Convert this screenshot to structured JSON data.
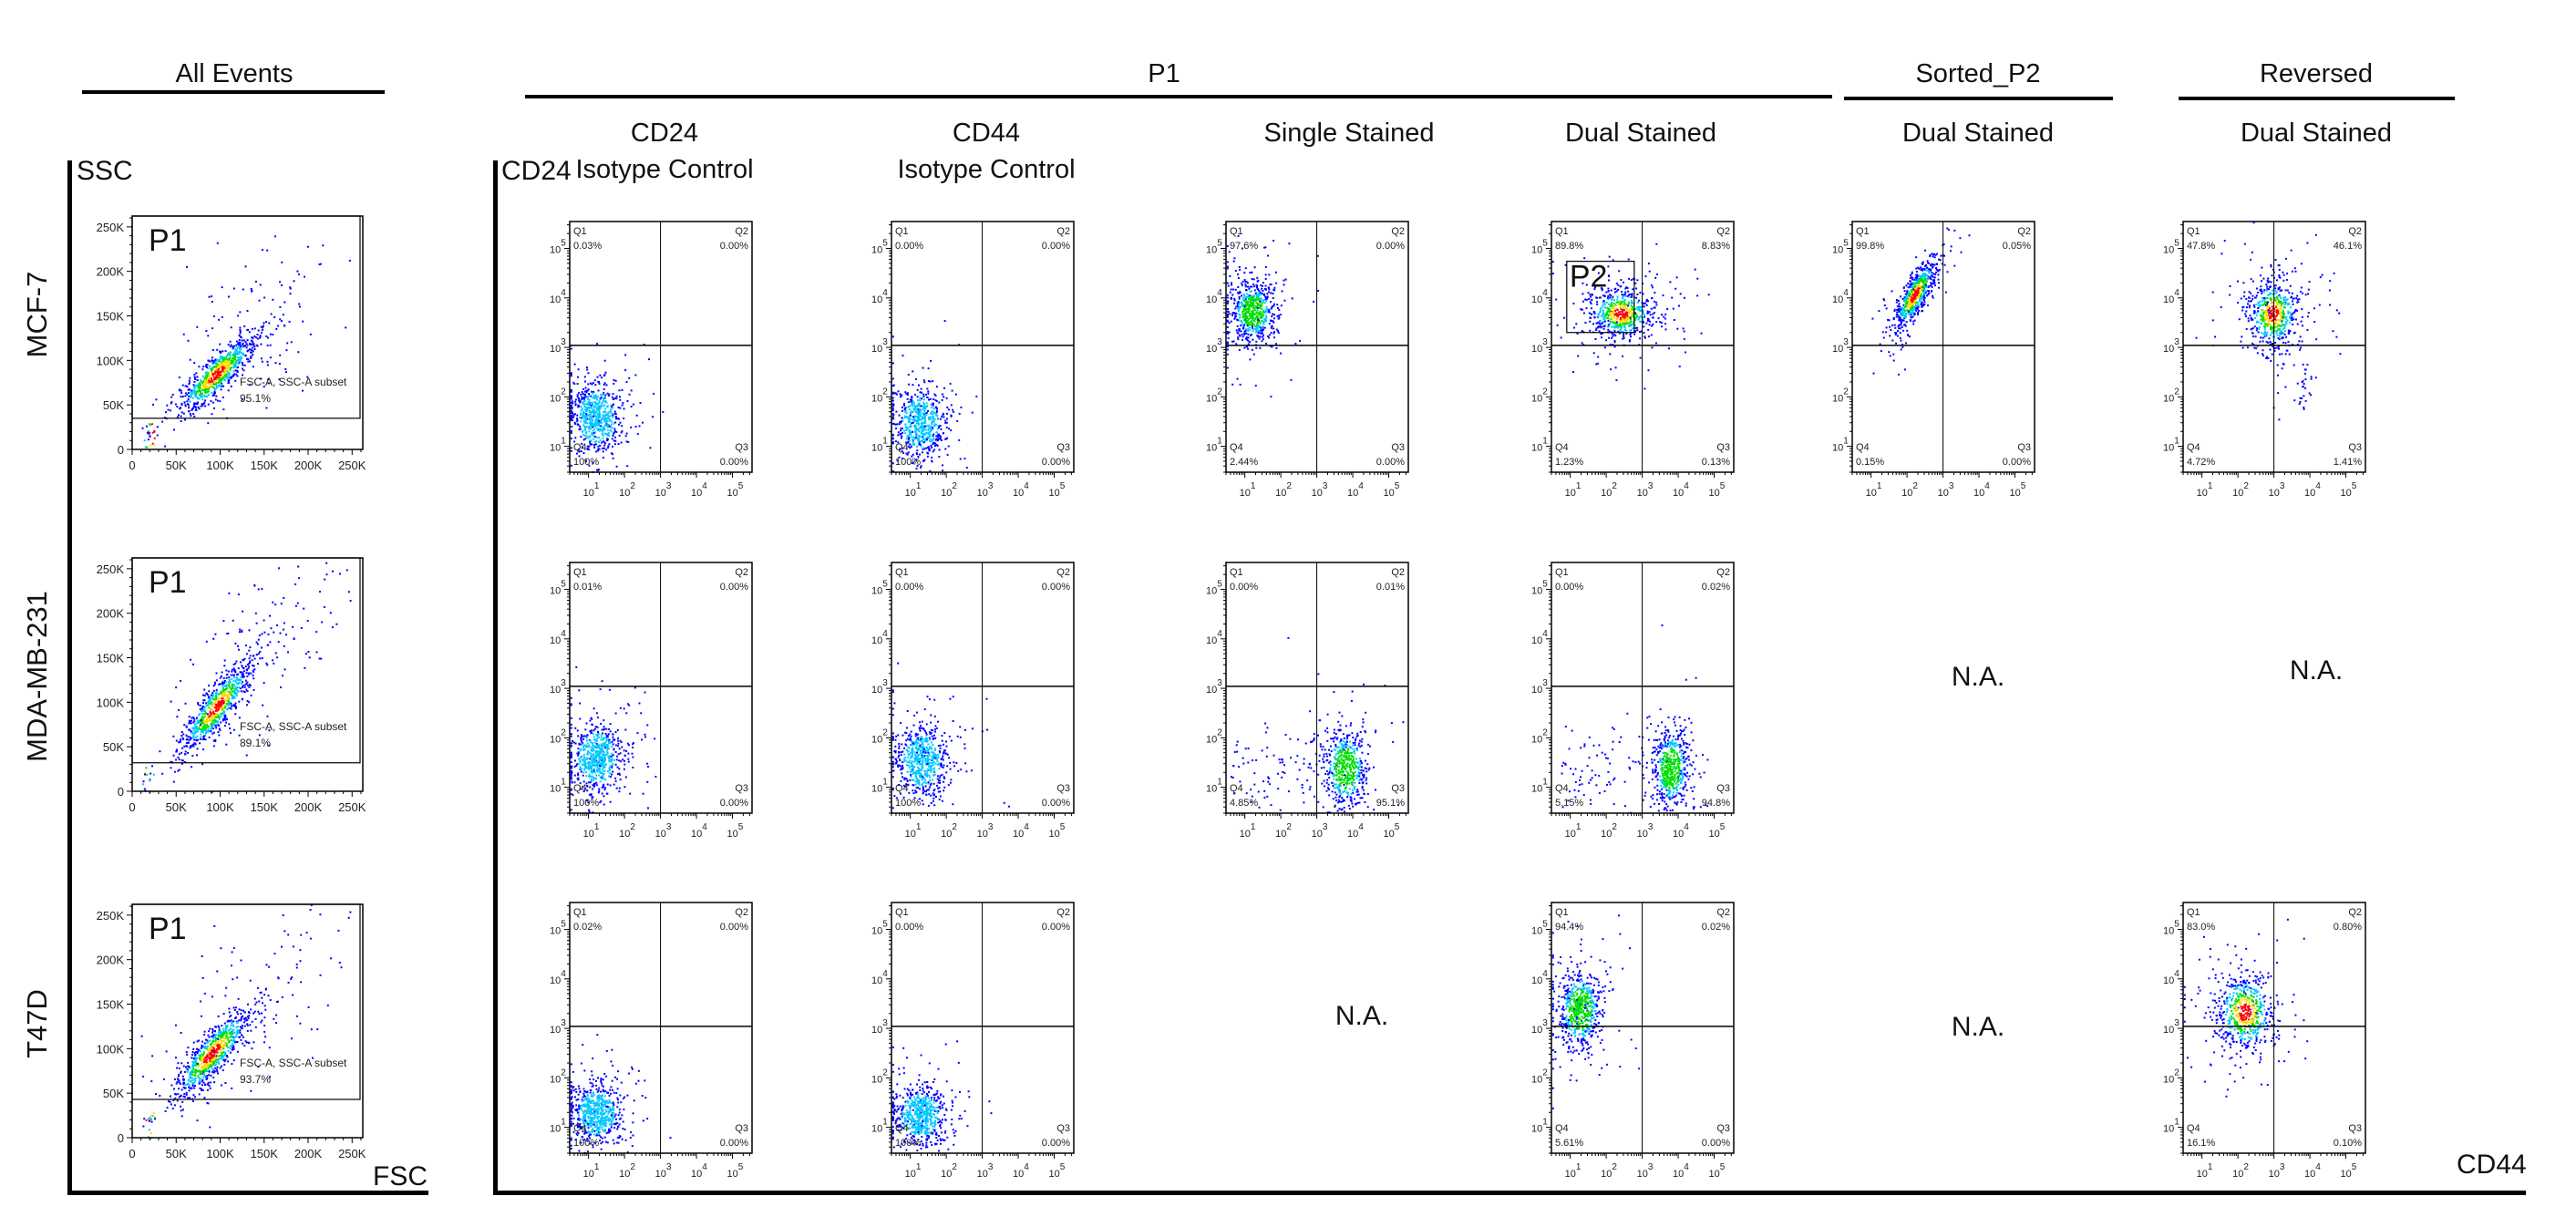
{
  "figure": {
    "column_groups": [
      {
        "label": "All Events"
      },
      {
        "label": "P1"
      },
      {
        "label": "Sorted_P2"
      },
      {
        "label": "Reversed"
      }
    ],
    "column_headers": [
      {
        "lines": [
          "CD24",
          "Isotype Control"
        ]
      },
      {
        "lines": [
          "CD44",
          "Isotype Control"
        ]
      },
      {
        "lines": [
          "Single Stained"
        ]
      },
      {
        "lines": [
          "Dual Stained"
        ]
      },
      {
        "lines": [
          "Dual Stained"
        ]
      },
      {
        "lines": [
          "Dual Stained"
        ]
      }
    ],
    "row_labels": [
      "MCF-7",
      "MDA-MB-231",
      "T47D"
    ],
    "axis_labels": {
      "ssc": "SSC",
      "fsc": "FSC",
      "cd24": "CD24",
      "cd44": "CD44"
    },
    "na_cells": [
      {
        "row": "T47D",
        "column": "P1|Single Stained",
        "label": "N.A."
      },
      {
        "row": "MDA-MB-231",
        "column": "Sorted_P2|Dual Stained",
        "label": "N.A."
      },
      {
        "row": "MDA-MB-231",
        "column": "Reversed|Dual Stained",
        "label": "N.A."
      },
      {
        "row": "T47D",
        "column": "Sorted_P2|Dual Stained",
        "label": "N.A."
      }
    ],
    "density_colors": [
      "#0000ff",
      "#00c8ff",
      "#00e000",
      "#ffd800",
      "#ff0000"
    ]
  },
  "chart_data": [
    {
      "type": "scatter",
      "row": "MCF-7",
      "column": "All Events",
      "xlabel": "FSC",
      "ylabel": "SSC",
      "xscale": "linear",
      "yscale": "linear",
      "xlim": [
        0,
        262144
      ],
      "ylim": [
        0,
        262144
      ],
      "xticks": [
        "0",
        "50K",
        "100K",
        "150K",
        "200K",
        "250K"
      ],
      "xtick_values": [
        0,
        50000,
        100000,
        150000,
        200000,
        250000
      ],
      "yticks": [
        "0",
        "50K",
        "100K",
        "150K",
        "200K",
        "250K"
      ],
      "ytick_values": [
        0,
        50000,
        100000,
        150000,
        200000,
        250000
      ],
      "gate": {
        "name": "P1",
        "label": "FSC-A, SSC-A subset",
        "percent": "95.1%",
        "x": [
          0,
          262144
        ],
        "y": [
          35000,
          262144
        ]
      },
      "population": {
        "center": [
          95000,
          85000
        ],
        "spread": [
          22000,
          22000
        ],
        "correlation": 0.85,
        "peak_level": 4,
        "tail": true
      }
    },
    {
      "type": "scatter",
      "row": "MDA-MB-231",
      "column": "All Events",
      "xlabel": "FSC",
      "ylabel": "SSC",
      "xscale": "linear",
      "yscale": "linear",
      "xlim": [
        0,
        262144
      ],
      "ylim": [
        0,
        262144
      ],
      "xticks": [
        "0",
        "50K",
        "100K",
        "150K",
        "200K",
        "250K"
      ],
      "xtick_values": [
        0,
        50000,
        100000,
        150000,
        200000,
        250000
      ],
      "yticks": [
        "0",
        "50K",
        "100K",
        "150K",
        "200K",
        "250K"
      ],
      "ytick_values": [
        0,
        50000,
        100000,
        150000,
        200000,
        250000
      ],
      "gate": {
        "name": "P1",
        "label": "FSC-A, SSC-A subset",
        "percent": "89.1%",
        "x": [
          0,
          262144
        ],
        "y": [
          32000,
          262144
        ]
      },
      "population": {
        "center": [
          95000,
          95000
        ],
        "spread": [
          20000,
          25000
        ],
        "correlation": 0.85,
        "peak_level": 4,
        "tail": true
      }
    },
    {
      "type": "scatter",
      "row": "T47D",
      "column": "All Events",
      "xlabel": "FSC",
      "ylabel": "SSC",
      "xscale": "linear",
      "yscale": "linear",
      "xlim": [
        0,
        262144
      ],
      "ylim": [
        0,
        262144
      ],
      "xticks": [
        "0",
        "50K",
        "100K",
        "150K",
        "200K",
        "250K"
      ],
      "xtick_values": [
        0,
        50000,
        100000,
        150000,
        200000,
        250000
      ],
      "yticks": [
        "0",
        "50K",
        "100K",
        "150K",
        "200K",
        "250K"
      ],
      "ytick_values": [
        0,
        50000,
        100000,
        150000,
        200000,
        250000
      ],
      "gate": {
        "name": "P1",
        "label": "FSC-A, SSC-A subset",
        "percent": "93.7%",
        "x": [
          0,
          262144
        ],
        "y": [
          43000,
          262144
        ]
      },
      "population": {
        "center": [
          90000,
          95000
        ],
        "spread": [
          22000,
          25000
        ],
        "correlation": 0.85,
        "peak_level": 4,
        "tail": true
      }
    },
    {
      "type": "scatter",
      "row": "MCF-7",
      "column": "P1|CD24 Isotype Control",
      "xlabel": "CD44",
      "ylabel": "CD24",
      "xscale": "log",
      "yscale": "log",
      "xlim": [
        3,
        350000
      ],
      "ylim": [
        3,
        350000
      ],
      "ticks": [
        "1",
        "2",
        "3",
        "4",
        "5"
      ],
      "quadrant_thresholds": [
        1000,
        1100
      ],
      "quadrants": {
        "Q1": "0.03%",
        "Q2": "0.00%",
        "Q3": "0.00%",
        "Q4": "100%"
      },
      "population": {
        "center": [
          16,
          40
        ],
        "spread": [
          0.35,
          0.35
        ],
        "peak_level": 1
      }
    },
    {
      "type": "scatter",
      "row": "MCF-7",
      "column": "P1|CD44 Isotype Control",
      "xlabel": "CD44",
      "ylabel": "CD24",
      "xscale": "log",
      "yscale": "log",
      "xlim": [
        3,
        350000
      ],
      "ylim": [
        3,
        350000
      ],
      "ticks": [
        "1",
        "2",
        "3",
        "4",
        "5"
      ],
      "quadrant_thresholds": [
        1000,
        1100
      ],
      "quadrants": {
        "Q1": "0.00%",
        "Q2": "0.00%",
        "Q3": "0.00%",
        "Q4": "100%"
      },
      "population": {
        "center": [
          18,
          30
        ],
        "spread": [
          0.35,
          0.35
        ],
        "peak_level": 1
      }
    },
    {
      "type": "scatter",
      "row": "MCF-7",
      "column": "P1|Single Stained",
      "xlabel": "CD44",
      "ylabel": "CD24",
      "xscale": "log",
      "yscale": "log",
      "xlim": [
        3,
        350000
      ],
      "ylim": [
        3,
        350000
      ],
      "ticks": [
        "1",
        "2",
        "3",
        "4",
        "5"
      ],
      "quadrant_thresholds": [
        1000,
        1100
      ],
      "quadrants": {
        "Q1": "97.6%",
        "Q2": "0.00%",
        "Q3": "0.00%",
        "Q4": "2.44%"
      },
      "population": {
        "center": [
          16,
          5500
        ],
        "spread": [
          0.3,
          0.3
        ],
        "peak_level": 2
      }
    },
    {
      "type": "scatter",
      "row": "MCF-7",
      "column": "P1|Dual Stained",
      "xlabel": "CD44",
      "ylabel": "CD24",
      "xscale": "log",
      "yscale": "log",
      "xlim": [
        3,
        350000
      ],
      "ylim": [
        3,
        350000
      ],
      "ticks": [
        "1",
        "2",
        "3",
        "4",
        "5"
      ],
      "quadrant_thresholds": [
        1000,
        1100
      ],
      "quadrants": {
        "Q1": "89.8%",
        "Q2": "8.83%",
        "Q3": "0.13%",
        "Q4": "1.23%"
      },
      "gate": {
        "name": "P2",
        "x": [
          8,
          600
        ],
        "y": [
          2000,
          55000
        ]
      },
      "population": {
        "center": [
          250,
          5000
        ],
        "spread": [
          0.45,
          0.25
        ],
        "peak_level": 4
      }
    },
    {
      "type": "scatter",
      "row": "MCF-7",
      "column": "Sorted_P2|Dual Stained",
      "xlabel": "CD44",
      "ylabel": "CD24",
      "xscale": "log",
      "yscale": "log",
      "xlim": [
        3,
        350000
      ],
      "ylim": [
        3,
        350000
      ],
      "ticks": [
        "1",
        "2",
        "3",
        "4",
        "5"
      ],
      "quadrant_thresholds": [
        1000,
        1100
      ],
      "quadrants": {
        "Q1": "99.8%",
        "Q2": "0.05%",
        "Q3": "0.00%",
        "Q4": "0.15%"
      },
      "population": {
        "center": [
          160,
          12000
        ],
        "spread": [
          0.3,
          0.35
        ],
        "correlation": 0.8,
        "peak_level": 4
      }
    },
    {
      "type": "scatter",
      "row": "MCF-7",
      "column": "Reversed|Dual Stained",
      "xlabel": "CD44",
      "ylabel": "CD24",
      "xscale": "log",
      "yscale": "log",
      "xlim": [
        3,
        350000
      ],
      "ylim": [
        3,
        350000
      ],
      "ticks": [
        "1",
        "2",
        "3",
        "4",
        "5"
      ],
      "quadrant_thresholds": [
        1000,
        1100
      ],
      "quadrants": {
        "Q1": "47.8%",
        "Q2": "46.1%",
        "Q3": "1.41%",
        "Q4": "4.72%"
      },
      "population": {
        "center": [
          900,
          5000
        ],
        "spread": [
          0.35,
          0.35
        ],
        "peak_level": 4,
        "secondary": [
          6000,
          150
        ]
      }
    },
    {
      "type": "scatter",
      "row": "MDA-MB-231",
      "column": "P1|CD24 Isotype Control",
      "xlabel": "CD44",
      "ylabel": "CD24",
      "xscale": "log",
      "yscale": "log",
      "xlim": [
        3,
        350000
      ],
      "ylim": [
        3,
        350000
      ],
      "ticks": [
        "1",
        "2",
        "3",
        "4",
        "5"
      ],
      "quadrant_thresholds": [
        1000,
        1100
      ],
      "quadrants": {
        "Q1": "0.01%",
        "Q2": "0.00%",
        "Q3": "0.00%",
        "Q4": "100%"
      },
      "population": {
        "center": [
          16,
          40
        ],
        "spread": [
          0.35,
          0.35
        ],
        "peak_level": 1
      }
    },
    {
      "type": "scatter",
      "row": "MDA-MB-231",
      "column": "P1|CD44 Isotype Control",
      "xlabel": "CD44",
      "ylabel": "CD24",
      "xscale": "log",
      "yscale": "log",
      "xlim": [
        3,
        350000
      ],
      "ylim": [
        3,
        350000
      ],
      "ticks": [
        "1",
        "2",
        "3",
        "4",
        "5"
      ],
      "quadrant_thresholds": [
        1000,
        1100
      ],
      "quadrants": {
        "Q1": "0.00%",
        "Q2": "0.00%",
        "Q3": "0.00%",
        "Q4": "100%"
      },
      "population": {
        "center": [
          20,
          35
        ],
        "spread": [
          0.35,
          0.35
        ],
        "peak_level": 1
      }
    },
    {
      "type": "scatter",
      "row": "MDA-MB-231",
      "column": "P1|Single Stained",
      "xlabel": "CD44",
      "ylabel": "CD24",
      "xscale": "log",
      "yscale": "log",
      "xlim": [
        3,
        350000
      ],
      "ylim": [
        3,
        350000
      ],
      "ticks": [
        "1",
        "2",
        "3",
        "4",
        "5"
      ],
      "quadrant_thresholds": [
        1000,
        1100
      ],
      "quadrants": {
        "Q1": "0.00%",
        "Q2": "0.01%",
        "Q3": "95.1%",
        "Q4": "4.85%"
      },
      "population": {
        "center": [
          6000,
          25
        ],
        "spread": [
          0.3,
          0.4
        ],
        "peak_level": 2,
        "left_smear": true
      }
    },
    {
      "type": "scatter",
      "row": "MDA-MB-231",
      "column": "P1|Dual Stained",
      "xlabel": "CD44",
      "ylabel": "CD24",
      "xscale": "log",
      "yscale": "log",
      "xlim": [
        3,
        350000
      ],
      "ylim": [
        3,
        350000
      ],
      "ticks": [
        "1",
        "2",
        "3",
        "4",
        "5"
      ],
      "quadrant_thresholds": [
        1000,
        1100
      ],
      "quadrants": {
        "Q1": "0.00%",
        "Q2": "0.02%",
        "Q3": "94.8%",
        "Q4": "5.15%"
      },
      "population": {
        "center": [
          6000,
          25
        ],
        "spread": [
          0.25,
          0.4
        ],
        "peak_level": 2,
        "left_smear": true
      }
    },
    {
      "type": "scatter",
      "row": "T47D",
      "column": "P1|CD24 Isotype Control",
      "xlabel": "CD44",
      "ylabel": "CD24",
      "xscale": "log",
      "yscale": "log",
      "xlim": [
        3,
        350000
      ],
      "ylim": [
        3,
        350000
      ],
      "ticks": [
        "1",
        "2",
        "3",
        "4",
        "5"
      ],
      "quadrant_thresholds": [
        1000,
        1100
      ],
      "quadrants": {
        "Q1": "0.02%",
        "Q2": "0.00%",
        "Q3": "0.00%",
        "Q4": "100%"
      },
      "population": {
        "center": [
          16,
          20
        ],
        "spread": [
          0.35,
          0.3
        ],
        "peak_level": 1
      }
    },
    {
      "type": "scatter",
      "row": "T47D",
      "column": "P1|CD44 Isotype Control",
      "xlabel": "CD44",
      "ylabel": "CD24",
      "xscale": "log",
      "yscale": "log",
      "xlim": [
        3,
        350000
      ],
      "ylim": [
        3,
        350000
      ],
      "ticks": [
        "1",
        "2",
        "3",
        "4",
        "5"
      ],
      "quadrant_thresholds": [
        1000,
        1100
      ],
      "quadrants": {
        "Q1": "0.00%",
        "Q2": "0.00%",
        "Q3": "0.00%",
        "Q4": "100%"
      },
      "population": {
        "center": [
          18,
          18
        ],
        "spread": [
          0.35,
          0.3
        ],
        "peak_level": 1
      }
    },
    {
      "type": "scatter",
      "row": "T47D",
      "column": "P1|Dual Stained",
      "xlabel": "CD44",
      "ylabel": "CD24",
      "xscale": "log",
      "yscale": "log",
      "xlim": [
        3,
        350000
      ],
      "ylim": [
        3,
        350000
      ],
      "ticks": [
        "1",
        "2",
        "3",
        "4",
        "5"
      ],
      "quadrant_thresholds": [
        1000,
        1100
      ],
      "quadrants": {
        "Q1": "94.4%",
        "Q2": "0.02%",
        "Q3": "0.00%",
        "Q4": "5.61%"
      },
      "population": {
        "center": [
          18,
          2500
        ],
        "spread": [
          0.3,
          0.4
        ],
        "peak_level": 2
      }
    },
    {
      "type": "scatter",
      "row": "T47D",
      "column": "Reversed|Dual Stained",
      "xlabel": "CD44",
      "ylabel": "CD24",
      "xscale": "log",
      "yscale": "log",
      "xlim": [
        3,
        350000
      ],
      "ylim": [
        3,
        350000
      ],
      "ticks": [
        "1",
        "2",
        "3",
        "4",
        "5"
      ],
      "quadrant_thresholds": [
        1000,
        1100
      ],
      "quadrants": {
        "Q1": "83.0%",
        "Q2": "0.80%",
        "Q3": "0.10%",
        "Q4": "16.1%"
      },
      "population": {
        "center": [
          150,
          2200
        ],
        "spread": [
          0.4,
          0.4
        ],
        "peak_level": 4
      }
    }
  ]
}
